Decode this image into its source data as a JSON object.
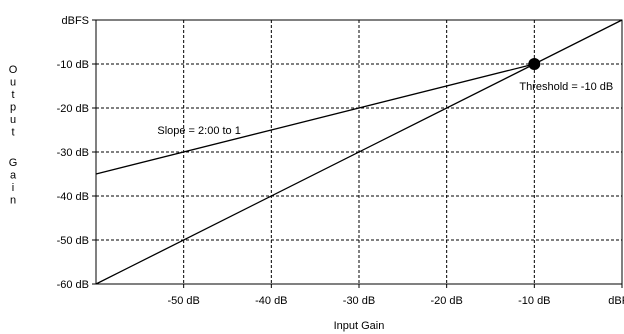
{
  "chart_data": {
    "type": "line",
    "xlabel": "Input Gain",
    "ylabel": "Output Gain",
    "xlim": [
      -60,
      0
    ],
    "ylim": [
      -60,
      0
    ],
    "x_ticks": [
      {
        "value": -50,
        "label": "-50 dB"
      },
      {
        "value": -40,
        "label": "-40 dB"
      },
      {
        "value": -30,
        "label": "-30 dB"
      },
      {
        "value": -20,
        "label": "-20 dB"
      },
      {
        "value": -10,
        "label": "-10 dB"
      },
      {
        "value": 0,
        "label": "dBFS"
      }
    ],
    "y_ticks": [
      {
        "value": 0,
        "label": "dBFS"
      },
      {
        "value": -10,
        "label": "-10 dB"
      },
      {
        "value": -20,
        "label": "-20 dB"
      },
      {
        "value": -30,
        "label": "-30 dB"
      },
      {
        "value": -40,
        "label": "-40 dB"
      },
      {
        "value": -50,
        "label": "-50 dB"
      },
      {
        "value": -60,
        "label": "-60 dB"
      }
    ],
    "series": [
      {
        "values": [
          [
            -60,
            -60
          ],
          [
            0,
            0
          ]
        ]
      },
      {
        "values": [
          [
            -60,
            -35
          ],
          [
            -10,
            -10
          ]
        ]
      }
    ],
    "points": [
      {
        "x": -10,
        "y": -10
      }
    ],
    "annotations": {
      "slope": {
        "text": "Slope = 2:00 to 1",
        "x": -53,
        "y": -25
      },
      "threshold": {
        "text": "Threshold = -10 dB",
        "x": -1,
        "y": -15
      }
    },
    "grid": true,
    "grid_style": "dashed",
    "colors": {
      "line": "#000000",
      "grid": "#000000",
      "background": "#ffffff"
    }
  }
}
